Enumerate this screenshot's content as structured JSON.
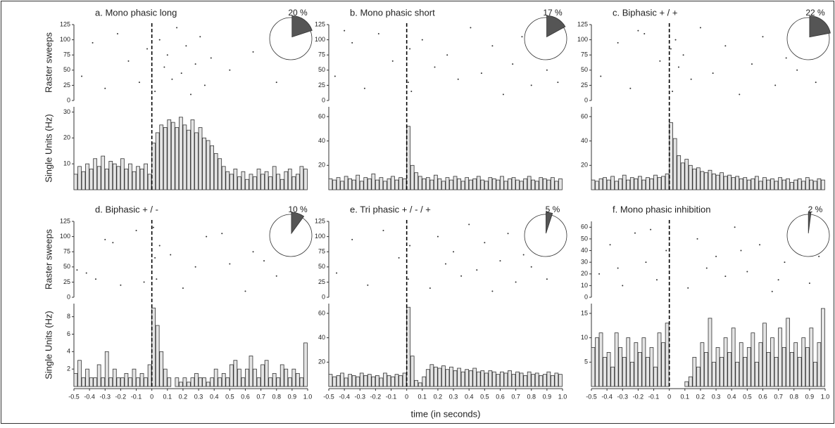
{
  "chart_data": [
    {
      "type": "histogram",
      "title": "a. Mono phasic long",
      "pie": {
        "value": 20,
        "value_label": "20 %"
      },
      "raster": {
        "ylabel": "Raster sweeps",
        "ylim": [
          0,
          125
        ],
        "yticks": [
          0,
          25,
          50,
          75,
          100,
          125
        ],
        "x": [
          -0.45,
          -0.38,
          -0.3,
          -0.22,
          -0.15,
          -0.08,
          -0.03,
          0.02,
          0.05,
          0.08,
          0.1,
          0.13,
          0.16,
          0.19,
          0.22,
          0.25,
          0.28,
          0.31,
          0.34,
          0.38,
          0.5,
          0.65,
          0.8,
          0.95
        ],
        "y": [
          40,
          95,
          20,
          110,
          65,
          30,
          85,
          15,
          100,
          55,
          75,
          35,
          120,
          45,
          90,
          10,
          60,
          105,
          25,
          70,
          50,
          80,
          30,
          115
        ]
      },
      "ylabel": "Single Units (Hz)",
      "xlim": [
        -0.5,
        1
      ],
      "ylim": [
        0,
        32
      ],
      "yticks": [
        10,
        20,
        30
      ],
      "bins": [
        -0.5,
        -0.475,
        -0.45,
        -0.425,
        -0.4,
        -0.375,
        -0.35,
        -0.325,
        -0.3,
        -0.275,
        -0.25,
        -0.225,
        -0.2,
        -0.175,
        -0.15,
        -0.125,
        -0.1,
        -0.075,
        -0.05,
        -0.025,
        0,
        0.025,
        0.05,
        0.075,
        0.1,
        0.125,
        0.15,
        0.175,
        0.2,
        0.225,
        0.25,
        0.275,
        0.3,
        0.325,
        0.35,
        0.375,
        0.4,
        0.425,
        0.45,
        0.475,
        0.5,
        0.525,
        0.55,
        0.575,
        0.6,
        0.625,
        0.65,
        0.675,
        0.7,
        0.725,
        0.75,
        0.775,
        0.8,
        0.825,
        0.85,
        0.875,
        0.9,
        0.925,
        0.95,
        0.975,
        1
      ],
      "counts": [
        6,
        9,
        7,
        10,
        8,
        12,
        9,
        13,
        8,
        11,
        10,
        9,
        12,
        8,
        10,
        7,
        9,
        8,
        10,
        6,
        18,
        22,
        25,
        24,
        27,
        26,
        24,
        28,
        25,
        23,
        27,
        22,
        24,
        20,
        19,
        17,
        14,
        12,
        9,
        7,
        6,
        8,
        5,
        7,
        4,
        6,
        5,
        8,
        6,
        7,
        5,
        9,
        6,
        4,
        7,
        8,
        5,
        6,
        9,
        8
      ]
    },
    {
      "type": "histogram",
      "title": "b. Mono phasic short",
      "pie": {
        "value": 17,
        "value_label": "17 %"
      },
      "raster": {
        "ylim": [
          0,
          125
        ],
        "yticks": [
          0,
          25,
          50,
          75,
          100,
          125
        ],
        "x": [
          -0.46,
          -0.35,
          -0.27,
          -0.18,
          -0.09,
          0.01,
          0.02,
          0.03,
          0.1,
          0.18,
          0.26,
          0.33,
          0.41,
          0.48,
          0.55,
          0.62,
          0.68,
          0.74,
          0.8,
          0.85,
          0.9,
          0.93,
          0.97,
          -0.4
        ],
        "y": [
          40,
          95,
          20,
          110,
          65,
          30,
          85,
          15,
          100,
          55,
          75,
          35,
          120,
          45,
          90,
          10,
          60,
          105,
          25,
          70,
          50,
          80,
          30,
          115
        ]
      },
      "xlim": [
        -0.5,
        1
      ],
      "ylim": [
        0,
        68
      ],
      "yticks": [
        20,
        40,
        60
      ],
      "bins": [
        -0.5,
        -0.475,
        -0.45,
        -0.425,
        -0.4,
        -0.375,
        -0.35,
        -0.325,
        -0.3,
        -0.275,
        -0.25,
        -0.225,
        -0.2,
        -0.175,
        -0.15,
        -0.125,
        -0.1,
        -0.075,
        -0.05,
        -0.025,
        0,
        0.025,
        0.05,
        0.075,
        0.1,
        0.125,
        0.15,
        0.175,
        0.2,
        0.225,
        0.25,
        0.275,
        0.3,
        0.325,
        0.35,
        0.375,
        0.4,
        0.425,
        0.45,
        0.475,
        0.5,
        0.525,
        0.55,
        0.575,
        0.6,
        0.625,
        0.65,
        0.675,
        0.7,
        0.725,
        0.75,
        0.775,
        0.8,
        0.825,
        0.85,
        0.875,
        0.9,
        0.925,
        0.95,
        0.975,
        1
      ],
      "counts": [
        9,
        8,
        10,
        7,
        11,
        9,
        8,
        12,
        7,
        10,
        9,
        13,
        8,
        10,
        7,
        9,
        11,
        8,
        10,
        9,
        52,
        20,
        14,
        11,
        9,
        10,
        8,
        12,
        9,
        7,
        10,
        8,
        11,
        9,
        7,
        10,
        8,
        9,
        11,
        8,
        7,
        10,
        9,
        8,
        11,
        7,
        9,
        10,
        8,
        7,
        9,
        11,
        8,
        7,
        10,
        9,
        8,
        10,
        7,
        9
      ]
    },
    {
      "type": "histogram",
      "title": "c. Biphasic + / +",
      "pie": {
        "value": 22,
        "value_label": "22 %"
      },
      "raster": {
        "ylim": [
          0,
          125
        ],
        "yticks": [
          0,
          25,
          50,
          75,
          100,
          125
        ],
        "x": [
          -0.44,
          -0.33,
          -0.25,
          -0.16,
          -0.06,
          0,
          0.01,
          0.02,
          0.04,
          0.06,
          0.09,
          0.14,
          0.2,
          0.28,
          0.36,
          0.45,
          0.53,
          0.6,
          0.68,
          0.75,
          0.82,
          0.88,
          0.94,
          -0.2
        ],
        "y": [
          40,
          95,
          20,
          110,
          65,
          30,
          85,
          15,
          100,
          55,
          75,
          35,
          120,
          45,
          90,
          10,
          60,
          105,
          25,
          70,
          50,
          80,
          30,
          115
        ]
      },
      "xlim": [
        -0.5,
        1
      ],
      "ylim": [
        0,
        68
      ],
      "yticks": [
        20,
        40,
        60
      ],
      "bins": [
        -0.5,
        -0.475,
        -0.45,
        -0.425,
        -0.4,
        -0.375,
        -0.35,
        -0.325,
        -0.3,
        -0.275,
        -0.25,
        -0.225,
        -0.2,
        -0.175,
        -0.15,
        -0.125,
        -0.1,
        -0.075,
        -0.05,
        -0.025,
        0,
        0.025,
        0.05,
        0.075,
        0.1,
        0.125,
        0.15,
        0.175,
        0.2,
        0.225,
        0.25,
        0.275,
        0.3,
        0.325,
        0.35,
        0.375,
        0.4,
        0.425,
        0.45,
        0.475,
        0.5,
        0.525,
        0.55,
        0.575,
        0.6,
        0.625,
        0.65,
        0.675,
        0.7,
        0.725,
        0.75,
        0.775,
        0.8,
        0.825,
        0.85,
        0.875,
        0.9,
        0.925,
        0.95,
        0.975,
        1
      ],
      "counts": [
        8,
        7,
        9,
        10,
        8,
        11,
        7,
        9,
        12,
        8,
        10,
        9,
        11,
        8,
        10,
        9,
        12,
        10,
        11,
        13,
        55,
        42,
        28,
        22,
        25,
        20,
        17,
        18,
        15,
        14,
        16,
        13,
        12,
        14,
        11,
        12,
        10,
        11,
        9,
        10,
        8,
        9,
        11,
        7,
        10,
        8,
        9,
        7,
        10,
        8,
        9,
        6,
        8,
        9,
        7,
        10,
        8,
        7,
        9,
        8
      ]
    },
    {
      "type": "histogram",
      "title": "d. Biphasic + / -",
      "pie": {
        "value": 10,
        "value_label": "10 %"
      },
      "raster": {
        "ylabel": "Raster sweeps",
        "ylim": [
          0,
          125
        ],
        "yticks": [
          0,
          25,
          50,
          75,
          100,
          125
        ],
        "x": [
          -0.42,
          -0.3,
          -0.2,
          -0.1,
          0.02,
          0.03,
          0.05,
          0.2,
          0.35,
          0.5,
          0.65,
          0.8,
          0.95,
          -0.48,
          -0.25,
          0.6,
          0.72,
          0.45,
          -0.05,
          0.12,
          0.28,
          0.88,
          -0.36,
          0.01
        ],
        "y": [
          40,
          95,
          20,
          110,
          65,
          30,
          85,
          15,
          100,
          55,
          75,
          35,
          120,
          45,
          90,
          10,
          60,
          105,
          25,
          70,
          50,
          80,
          30,
          115
        ]
      },
      "ylabel": "Single Units (Hz)",
      "xlim": [
        -0.5,
        1
      ],
      "ylim": [
        0,
        9.5
      ],
      "yticks": [
        2,
        4,
        6,
        8
      ],
      "xticks": [
        -0.5,
        -0.4,
        -0.3,
        -0.2,
        -0.1,
        0,
        0.1,
        0.2,
        0.3,
        0.4,
        0.5,
        0.6,
        0.7,
        0.8,
        0.9,
        {
          "value": 1,
          "label": "1.0"
        }
      ],
      "bins": [
        -0.5,
        -0.475,
        -0.45,
        -0.425,
        -0.4,
        -0.375,
        -0.35,
        -0.325,
        -0.3,
        -0.275,
        -0.25,
        -0.225,
        -0.2,
        -0.175,
        -0.15,
        -0.125,
        -0.1,
        -0.075,
        -0.05,
        -0.025,
        0,
        0.025,
        0.05,
        0.075,
        0.1,
        0.125,
        0.15,
        0.175,
        0.2,
        0.225,
        0.25,
        0.275,
        0.3,
        0.325,
        0.35,
        0.375,
        0.4,
        0.425,
        0.45,
        0.475,
        0.5,
        0.525,
        0.55,
        0.575,
        0.6,
        0.625,
        0.65,
        0.675,
        0.7,
        0.725,
        0.75,
        0.775,
        0.8,
        0.825,
        0.85,
        0.875,
        0.9,
        0.925,
        0.95,
        0.975,
        1
      ],
      "counts": [
        1.5,
        3,
        1,
        2,
        1,
        1,
        2.5,
        1,
        4,
        1,
        2,
        1,
        1,
        1.5,
        1,
        2,
        1,
        1.5,
        1,
        2.5,
        9,
        7,
        4,
        2,
        1,
        0,
        1,
        0.5,
        1,
        0.5,
        1,
        1.5,
        1,
        1,
        0.5,
        1,
        2,
        1,
        1.5,
        1,
        2.5,
        3,
        2,
        1,
        2,
        3.5,
        2,
        1,
        2.5,
        3,
        1,
        1.5,
        1,
        2.5,
        2,
        1,
        2,
        1.5,
        1,
        5
      ]
    },
    {
      "type": "histogram",
      "title": "e. Tri phasic + / - / +",
      "pie": {
        "value": 5,
        "value_label": "5 %"
      },
      "raster": {
        "ylim": [
          0,
          125
        ],
        "yticks": [
          0,
          25,
          50,
          75,
          100,
          125
        ],
        "x": [
          -0.45,
          -0.35,
          -0.25,
          -0.15,
          -0.05,
          0.01,
          0.02,
          0.15,
          0.2,
          0.25,
          0.3,
          0.35,
          0.4,
          0.45,
          0.5,
          0.55,
          0.6,
          0.65,
          0.7,
          0.75,
          0.8,
          0.85,
          0.9,
          0.95
        ],
        "y": [
          40,
          95,
          20,
          110,
          65,
          30,
          85,
          15,
          100,
          55,
          75,
          35,
          120,
          45,
          90,
          10,
          60,
          105,
          25,
          70,
          50,
          80,
          30,
          115
        ]
      },
      "xlim": [
        -0.5,
        1
      ],
      "ylim": [
        0,
        68
      ],
      "yticks": [
        20,
        40,
        60
      ],
      "xticks": [
        -0.5,
        -0.4,
        -0.3,
        -0.2,
        -0.1,
        0,
        0.1,
        0.2,
        0.3,
        0.4,
        0.5,
        0.6,
        0.7,
        0.8,
        0.9,
        {
          "value": 1,
          "label": "1.0"
        }
      ],
      "xlabel": "time (in seconds)",
      "bins": [
        -0.5,
        -0.475,
        -0.45,
        -0.425,
        -0.4,
        -0.375,
        -0.35,
        -0.325,
        -0.3,
        -0.275,
        -0.25,
        -0.225,
        -0.2,
        -0.175,
        -0.15,
        -0.125,
        -0.1,
        -0.075,
        -0.05,
        -0.025,
        0,
        0.025,
        0.05,
        0.075,
        0.1,
        0.125,
        0.15,
        0.175,
        0.2,
        0.225,
        0.25,
        0.275,
        0.3,
        0.325,
        0.35,
        0.375,
        0.4,
        0.425,
        0.45,
        0.475,
        0.5,
        0.525,
        0.55,
        0.575,
        0.6,
        0.625,
        0.65,
        0.675,
        0.7,
        0.725,
        0.75,
        0.775,
        0.8,
        0.825,
        0.85,
        0.875,
        0.9,
        0.925,
        0.95,
        0.975,
        1
      ],
      "counts": [
        10,
        8,
        9,
        11,
        7,
        10,
        9,
        8,
        11,
        9,
        10,
        8,
        9,
        7,
        11,
        9,
        8,
        10,
        9,
        11,
        65,
        25,
        5,
        3,
        8,
        14,
        18,
        16,
        15,
        17,
        14,
        16,
        13,
        15,
        12,
        14,
        13,
        15,
        12,
        13,
        11,
        13,
        12,
        10,
        12,
        11,
        13,
        10,
        12,
        11,
        9,
        12,
        10,
        11,
        9,
        10,
        12,
        9,
        11,
        10
      ]
    },
    {
      "type": "histogram",
      "title": "f. Mono phasic inhibition",
      "pie": {
        "value": 2,
        "value_label": "2 %"
      },
      "raster": {
        "ylim": [
          0,
          65
        ],
        "yticks": [
          0,
          10,
          20,
          30,
          40,
          50,
          60
        ],
        "x": [
          -0.45,
          -0.38,
          -0.3,
          -0.22,
          -0.15,
          -0.08,
          -0.02,
          0.12,
          0.18,
          0.24,
          0.3,
          0.36,
          0.42,
          0.5,
          0.58,
          0.66,
          0.74,
          0.82,
          0.9,
          0.96,
          -0.33,
          0.46,
          0.7,
          -0.12
        ],
        "y": [
          20,
          45,
          10,
          55,
          30,
          15,
          40,
          8,
          50,
          25,
          35,
          18,
          60,
          22,
          45,
          5,
          30,
          52,
          12,
          35,
          25,
          40,
          15,
          58
        ]
      },
      "xlim": [
        -0.5,
        1
      ],
      "ylim": [
        0,
        17
      ],
      "yticks": [
        5,
        10,
        15
      ],
      "xticks": [
        -0.5,
        -0.4,
        -0.3,
        -0.2,
        -0.1,
        0,
        0.1,
        0.2,
        0.3,
        0.4,
        0.5,
        0.6,
        0.7,
        0.8,
        0.9,
        {
          "value": 1,
          "label": "1.0"
        }
      ],
      "bins": [
        -0.5,
        -0.475,
        -0.45,
        -0.425,
        -0.4,
        -0.375,
        -0.35,
        -0.325,
        -0.3,
        -0.275,
        -0.25,
        -0.225,
        -0.2,
        -0.175,
        -0.15,
        -0.125,
        -0.1,
        -0.075,
        -0.05,
        -0.025,
        0,
        0.025,
        0.05,
        0.075,
        0.1,
        0.125,
        0.15,
        0.175,
        0.2,
        0.225,
        0.25,
        0.275,
        0.3,
        0.325,
        0.35,
        0.375,
        0.4,
        0.425,
        0.45,
        0.475,
        0.5,
        0.525,
        0.55,
        0.575,
        0.6,
        0.625,
        0.65,
        0.675,
        0.7,
        0.725,
        0.75,
        0.775,
        0.8,
        0.825,
        0.85,
        0.875,
        0.9,
        0.925,
        0.95,
        0.975,
        1
      ],
      "counts": [
        8,
        10,
        11,
        6,
        7,
        4,
        11,
        8,
        6,
        10,
        5,
        9,
        7,
        10,
        6,
        8,
        4,
        11,
        9,
        13,
        0,
        0,
        0,
        0,
        1,
        2,
        6,
        4,
        9,
        7,
        14,
        5,
        8,
        6,
        10,
        7,
        12,
        5,
        9,
        6,
        8,
        11,
        5,
        9,
        13,
        7,
        10,
        6,
        12,
        8,
        14,
        7,
        9,
        6,
        10,
        8,
        12,
        5,
        9,
        16
      ]
    }
  ]
}
